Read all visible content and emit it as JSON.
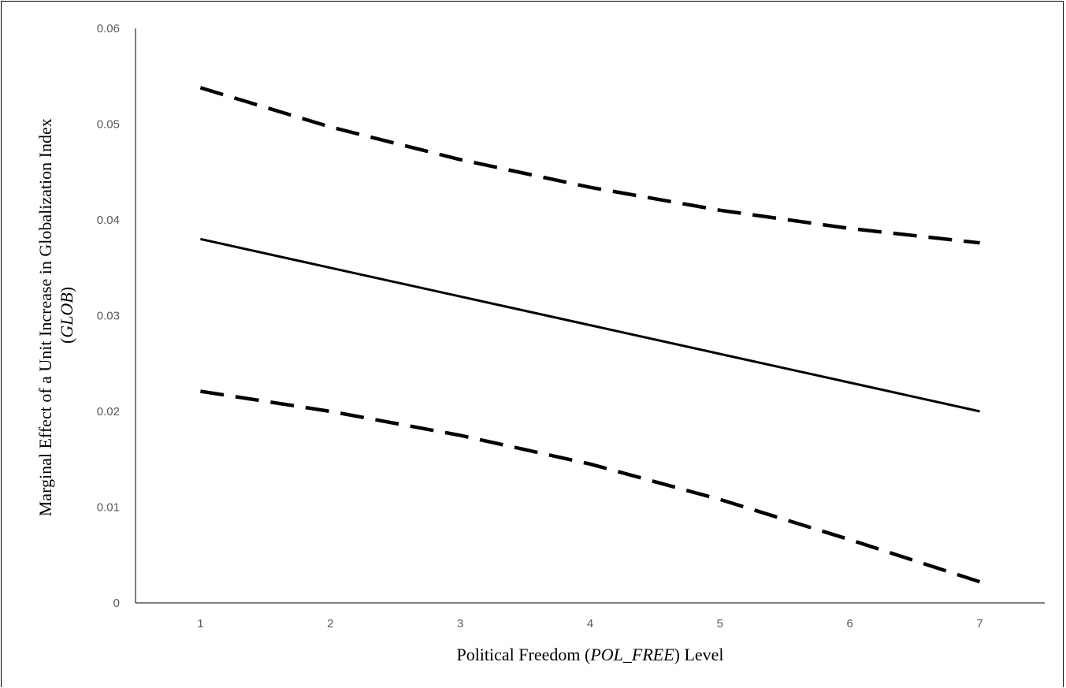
{
  "chart_data": {
    "type": "line",
    "xlabel": {
      "before": "Political  Freedom (",
      "italic": "POL_FREE",
      "after": ") Level"
    },
    "ylabel": {
      "line1": "Marginal Effect of a Unit Increase in Globalization Index",
      "line2_open": "(",
      "line2_italic": "GLOB",
      "line2_close": ")"
    },
    "x": [
      1,
      2,
      3,
      4,
      5,
      6,
      7
    ],
    "xlim": [
      0.5,
      7.5
    ],
    "ylim": [
      0,
      0.06
    ],
    "yticks": [
      "0",
      "0.01",
      "0.02",
      "0.03",
      "0.04",
      "0.05",
      "0.06"
    ],
    "xticks": [
      "1",
      "2",
      "3",
      "4",
      "5",
      "6",
      "7"
    ],
    "grid": false,
    "series": [
      {
        "key": "upper-bound",
        "style": "dashed",
        "color": "#000000",
        "values": [
          0.0538,
          0.0497,
          0.0463,
          0.0434,
          0.041,
          0.0391,
          0.0376
        ]
      },
      {
        "key": "marginal-effect",
        "style": "solid",
        "color": "#000000",
        "values": [
          0.038,
          0.035,
          0.032,
          0.029,
          0.026,
          0.023,
          0.02
        ]
      },
      {
        "key": "lower-bound",
        "style": "dashed",
        "color": "#000000",
        "values": [
          0.0221,
          0.02,
          0.0175,
          0.0145,
          0.0108,
          0.0066,
          0.0022
        ]
      }
    ]
  }
}
